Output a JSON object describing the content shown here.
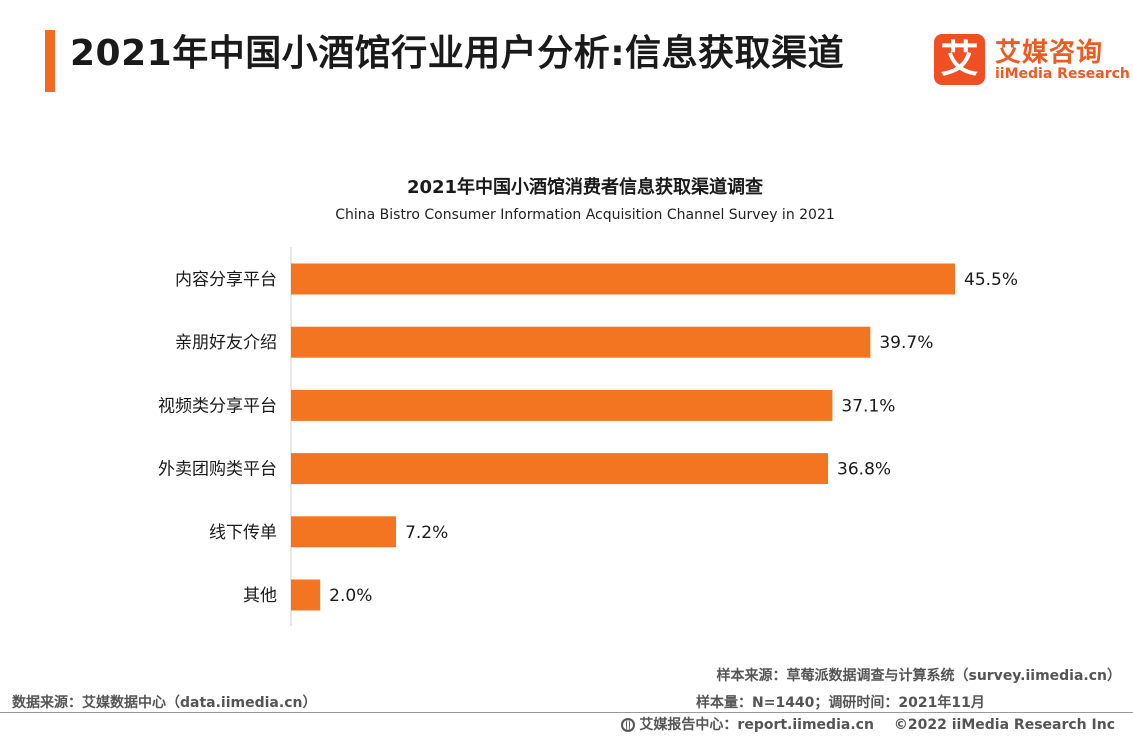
{
  "header": {
    "title": "2021年中国小酒馆行业用户分析:信息获取渠道",
    "logo_mark": "艾",
    "logo_name": "艾媒咨询",
    "logo_sub": "iiMedia Research"
  },
  "colors": {
    "accent": "#f26b22",
    "bar": "#f47521",
    "logo": "#ef5a22"
  },
  "chart_data": {
    "type": "bar",
    "orientation": "horizontal",
    "title": "2021年中国小酒馆消费者信息获取渠道调查",
    "subtitle": "China Bistro Consumer Information Acquisition Channel Survey in 2021",
    "categories": [
      "内容分享平台",
      "亲朋好友介绍",
      "视频类分享平台",
      "外卖团购类平台",
      "线下传单",
      "其他"
    ],
    "values": [
      45.5,
      39.7,
      37.1,
      36.8,
      7.2,
      2.0
    ],
    "value_labels": [
      "45.5%",
      "39.7%",
      "37.1%",
      "36.8%",
      "7.2%",
      "2.0%"
    ],
    "unit": "%",
    "xlim": [
      0,
      50
    ],
    "grid": false,
    "legend": "none"
  },
  "notes": {
    "sample_source": "样本来源：草莓派数据调查与计算系统（survey.iimedia.cn）",
    "sample_size": "样本量：N=1440；调研时间：2021年11月",
    "data_source": "数据来源：艾媒数据中心（data.iimedia.cn）"
  },
  "footer": {
    "report_center": "艾媒报告中心：report.iimedia.cn",
    "copyright": "©2022  iiMedia Research  Inc"
  }
}
